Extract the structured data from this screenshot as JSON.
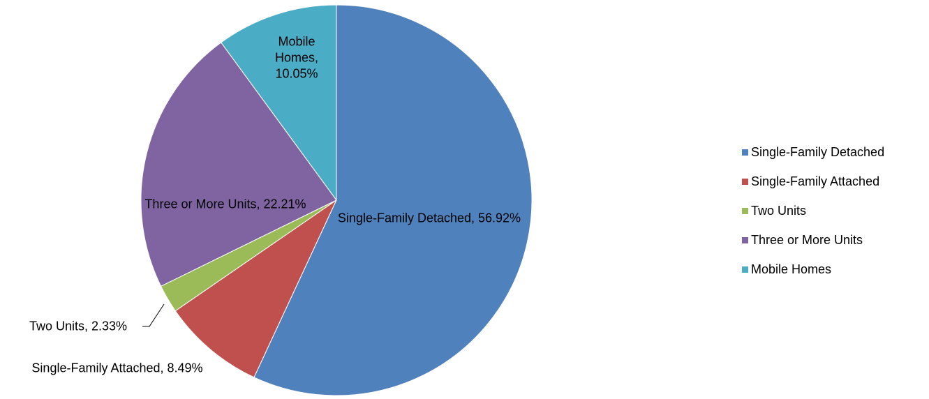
{
  "chart_data": {
    "type": "pie",
    "categories": [
      "Single-Family Detached",
      "Single-Family Attached",
      "Two Units",
      "Three or More Units",
      "Mobile Homes"
    ],
    "values": [
      56.92,
      8.49,
      2.33,
      22.21,
      10.05
    ],
    "value_labels": [
      "Single-Family Detached, 56.92%",
      "Single-Family Attached, 8.49%",
      "Two Units, 2.33%",
      "Three or More Units, 22.21%",
      "Mobile Homes, 10.05%"
    ],
    "colors": [
      "#4f81bd",
      "#c0504d",
      "#9bbb59",
      "#8064a2",
      "#4bacc6"
    ],
    "legend": "right"
  }
}
